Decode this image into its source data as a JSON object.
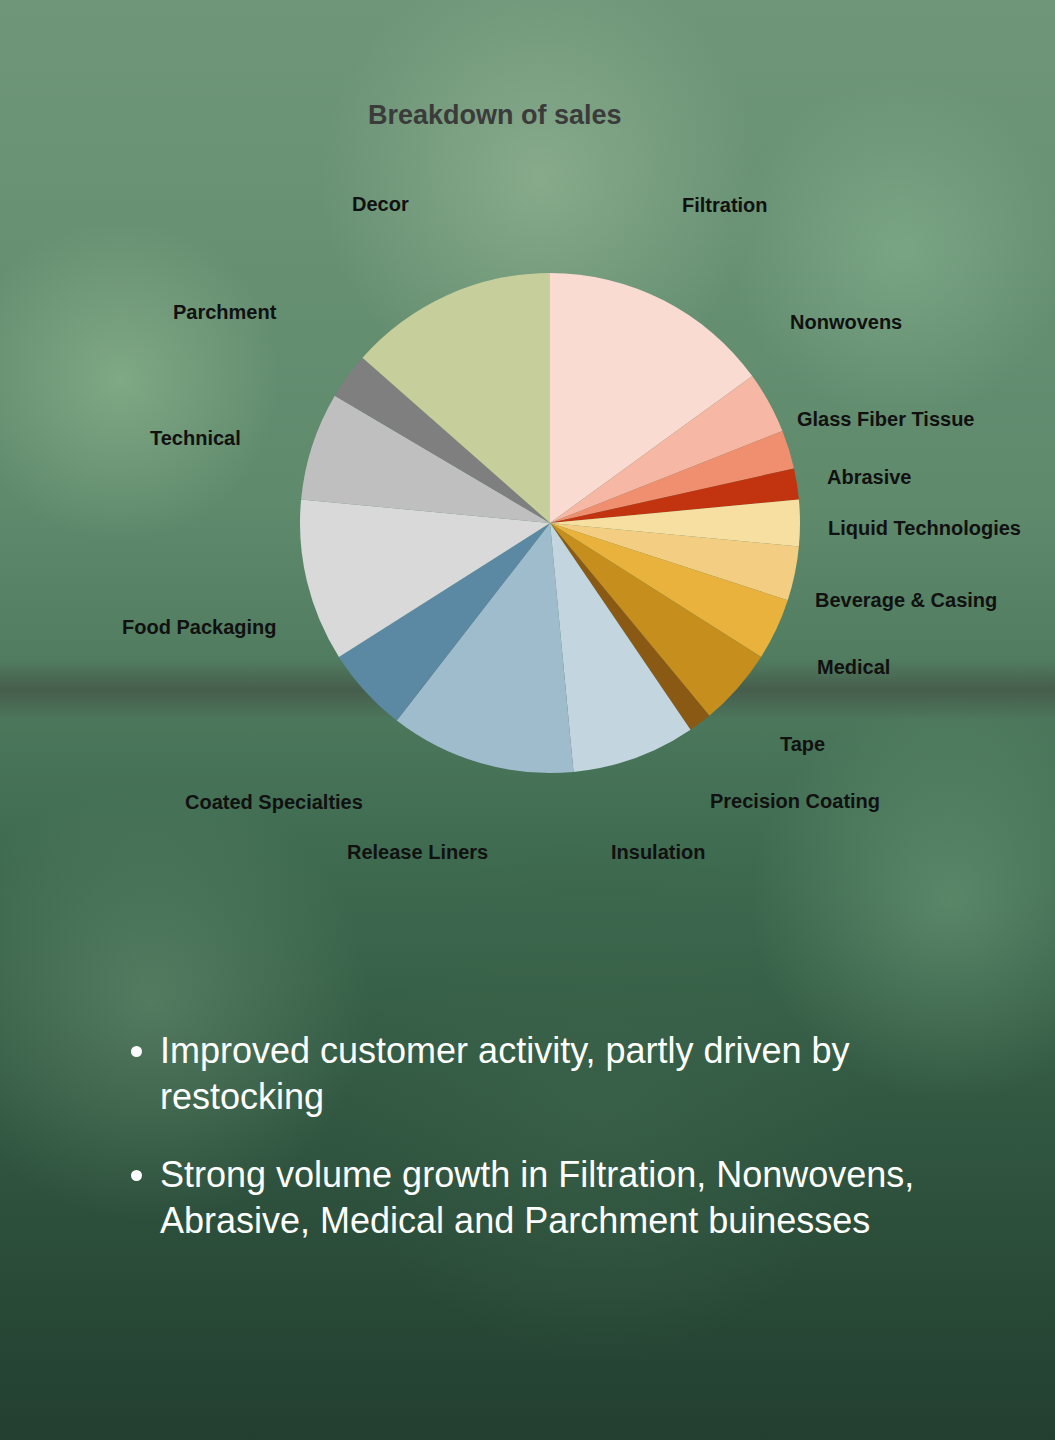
{
  "chart_data": {
    "type": "pie",
    "title": "Breakdown of sales",
    "categories": [
      "Filtration",
      "Nonwovens",
      "Glass Fiber Tissue",
      "Abrasive",
      "Liquid Technologies",
      "Beverage & Casing",
      "Medical",
      "Tape",
      "Precision Coating",
      "Insulation",
      "Release Liners",
      "Coated Specialties",
      "Food Packaging",
      "Technical",
      "Parchment",
      "Decor"
    ],
    "values": [
      15,
      4,
      2.5,
      2,
      3,
      3.5,
      4,
      5,
      1.5,
      8,
      12,
      5.5,
      10.5,
      7,
      3,
      13.5
    ],
    "colors": [
      "#fadbd2",
      "#f6b7a4",
      "#f08f6f",
      "#c2330f",
      "#f7dfa2",
      "#f2cd82",
      "#e8b23c",
      "#c58e1d",
      "#8a5a14",
      "#c3d6e0",
      "#9ebccc",
      "#5b89a3",
      "#d9d9d9",
      "#bfbfbf",
      "#7f7f7f",
      "#c6cf9b"
    ],
    "data_labels": false,
    "annotations": [
      "Improved customer activity, partly driven by restocking",
      "Strong volume growth in Filtration, Nonwovens, Abrasive, Medical and Parchment buinesses"
    ]
  }
}
